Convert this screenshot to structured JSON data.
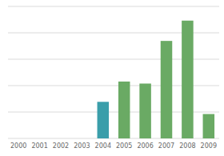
{
  "chart_data": {
    "type": "bar",
    "categories": [
      "2000",
      "2001",
      "2002",
      "2003",
      "2004",
      "2005",
      "2006",
      "2007",
      "2008",
      "2009"
    ],
    "values": [
      0,
      0,
      0,
      0,
      18,
      28,
      27,
      48,
      58,
      12
    ],
    "colors": [
      "#6aaa64",
      "#6aaa64",
      "#6aaa64",
      "#6aaa64",
      "#3a9eaa",
      "#6aaa64",
      "#6aaa64",
      "#6aaa64",
      "#6aaa64",
      "#6aaa64"
    ],
    "ylim": [
      0,
      65
    ],
    "yticks": [
      0,
      13,
      26,
      39,
      52,
      65
    ],
    "grid": true,
    "tick_labels": "x"
  }
}
